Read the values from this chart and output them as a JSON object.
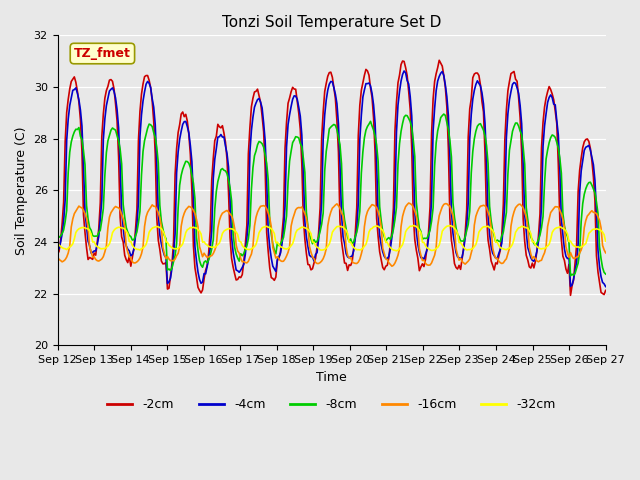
{
  "title": "Tonzi Soil Temperature Set D",
  "xlabel": "Time",
  "ylabel": "Soil Temperature (C)",
  "ylim": [
    20,
    32
  ],
  "xlim": [
    0,
    15
  ],
  "x_tick_labels": [
    "Sep 12",
    "Sep 13",
    "Sep 14",
    "Sep 15",
    "Sep 16",
    "Sep 17",
    "Sep 18",
    "Sep 19",
    "Sep 20",
    "Sep 21",
    "Sep 22",
    "Sep 23",
    "Sep 24",
    "Sep 25",
    "Sep 26",
    "Sep 27"
  ],
  "y_ticks": [
    20,
    22,
    24,
    26,
    28,
    30,
    32
  ],
  "legend_labels": [
    "-2cm",
    "-4cm",
    "-8cm",
    "-16cm",
    "-32cm"
  ],
  "legend_colors": [
    "#cc0000",
    "#0000cc",
    "#00cc00",
    "#ff8800",
    "#ffff00"
  ],
  "annotation_text": "TZ_fmet",
  "annotation_color": "#cc0000",
  "annotation_bg": "#ffffcc",
  "fig_bg_color": "#e8e8e8",
  "plot_bg_color": "#e8e8e8",
  "figsize": [
    6.4,
    4.8
  ],
  "dpi": 100,
  "title_fontsize": 11,
  "axis_fontsize": 9,
  "tick_fontsize": 8,
  "legend_fontsize": 9,
  "line_width": 1.2
}
